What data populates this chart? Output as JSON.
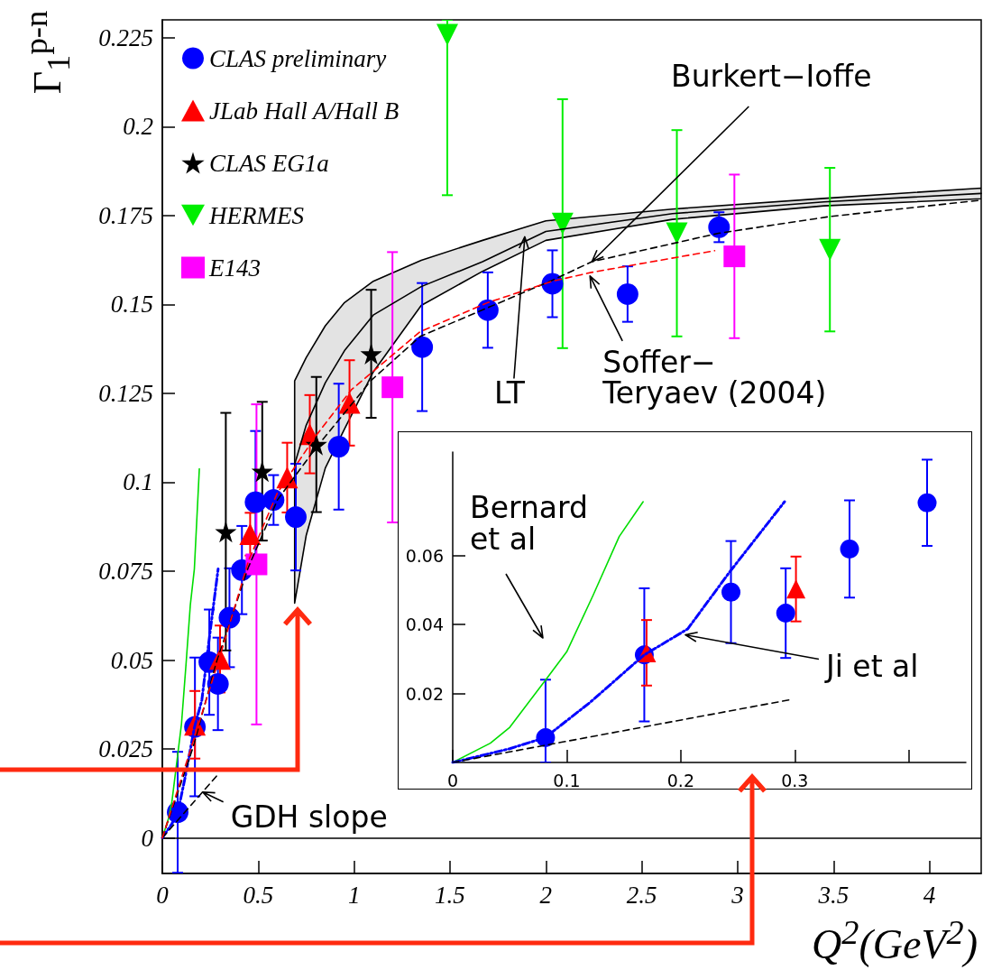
{
  "chart_data": [
    {
      "type": "scatter",
      "xlabel": "Q$^{2}$(GeV$^{2}$)",
      "ylabel": "Γ$_{1}$$^{p-n}$",
      "xlim": [
        0,
        4.27
      ],
      "xticks": [
        0,
        0.5,
        1,
        1.5,
        2,
        2.5,
        3,
        3.5,
        4
      ],
      "ylim": [
        -0.01,
        0.23
      ],
      "yticks": [
        0,
        0.025,
        0.05,
        0.075,
        0.1,
        0.125,
        0.15,
        0.175,
        0.2,
        0.225
      ],
      "grid": false,
      "legend": "top left",
      "ref_lines": [
        {
          "axis": "y",
          "value": 0,
          "color": "#000000"
        }
      ],
      "annotations": [
        {
          "text": "Burkert−Ioffe",
          "x": 2.24,
          "y": 0.162
        },
        {
          "text": "Soffer−\nTeryaev (2004)",
          "x": 2.23,
          "y": 0.158
        },
        {
          "text": "LT",
          "x": 1.89,
          "y": 0.169
        },
        {
          "text": "GDH slope",
          "x": 0.21,
          "y": 0.0129
        }
      ],
      "series": [
        {
          "type": "line",
          "color": "#000000",
          "marker": "none",
          "line_style": "solid",
          "x": [
            0.69,
            0.75,
            0.85,
            0.95,
            1.1,
            1.35,
            1.67,
            2.0,
            2.66,
            3.45,
            4.27
          ],
          "values": [
            0.105,
            0.116,
            0.128,
            0.137,
            0.147,
            0.155,
            0.162,
            0.1705,
            0.1755,
            0.1788,
            0.1812
          ],
          "lower": [
            0.066,
            0.085,
            0.104,
            0.115,
            0.131,
            0.1497,
            0.1593,
            0.168,
            0.1739,
            0.1777,
            0.1797
          ],
          "upper": [
            0.1285,
            0.135,
            0.144,
            0.1505,
            0.1565,
            0.1624,
            0.168,
            0.1735,
            0.1768,
            0.1798,
            0.1827
          ]
        },
        {
          "type": "line",
          "color": "#00dd00",
          "marker": "none",
          "line_style": "solid",
          "x": [
            0,
            0.033,
            0.05,
            0.083,
            0.1,
            0.123,
            0.146,
            0.167,
            0.193
          ],
          "values": [
            0,
            0.0056,
            0.0102,
            0.0246,
            0.0321,
            0.0484,
            0.0655,
            0.0756,
            0.1038
          ]
        },
        {
          "type": "line",
          "color": "#0000ff",
          "marker": "none",
          "line_style": "dotted",
          "x": [
            0,
            0.05,
            0.081,
            0.12,
            0.168,
            0.206,
            0.243,
            0.291
          ],
          "values": [
            0,
            0.004,
            0.0072,
            0.0173,
            0.0312,
            0.0387,
            0.0553,
            0.0756
          ]
        },
        {
          "type": "line",
          "color": "#000000",
          "marker": "none",
          "line_style": "dashed",
          "x": [
            0,
            0.296
          ],
          "values": [
            0,
            0.0182
          ]
        },
        {
          "type": "line",
          "color": "#000000",
          "marker": "none",
          "line_style": "dashed",
          "x": [
            0,
            0.16,
            0.28,
            0.448,
            0.6,
            0.8,
            1.09,
            1.345,
            2.03,
            2.24,
            2.9,
            3.48,
            4.27
          ],
          "values": [
            0,
            0.0254,
            0.049,
            0.076,
            0.095,
            0.1096,
            0.1287,
            0.141,
            0.1567,
            0.162,
            0.17,
            0.1747,
            0.1793
          ]
        },
        {
          "type": "line",
          "color": "#ff0000",
          "marker": "none",
          "line_style": "dashed",
          "x": [
            0,
            0.16,
            0.3,
            0.45,
            0.6,
            0.8,
            0.986,
            1.344,
            1.697,
            2.034,
            2.238,
            2.88
          ],
          "values": [
            0,
            0.027,
            0.051,
            0.078,
            0.097,
            0.113,
            0.126,
            0.1423,
            0.1505,
            0.1565,
            0.159,
            0.1651
          ]
        },
        {
          "name": "CLAS preliminary",
          "type": "scatter",
          "color": "#0000ff",
          "marker": "circle",
          "x": [
            0.08,
            0.17,
            0.245,
            0.29,
            0.35,
            0.415,
            0.486,
            0.58,
            0.696,
            0.92,
            1.355,
            1.697,
            2.034,
            2.426,
            2.903
          ],
          "values": [
            0.0072,
            0.0312,
            0.0494,
            0.0433,
            0.0619,
            0.0753,
            0.0944,
            0.095,
            0.0902,
            0.11,
            0.138,
            0.1484,
            0.1558,
            0.1529,
            0.1717
          ],
          "errors": [
            0.017,
            0.0195,
            0.0148,
            0.013,
            0.0139,
            0.0124,
            0.02,
            0.007,
            0.015,
            0.0177,
            0.018,
            0.0106,
            0.0094,
            0.0078,
            0.0042
          ]
        },
        {
          "name": "JLab Hall A/Hall B",
          "type": "scatter",
          "color": "#ff0000",
          "marker": "triangle",
          "x": [
            0.17,
            0.301,
            0.458,
            0.651,
            0.769,
            0.976
          ],
          "values": [
            0.0318,
            0.0503,
            0.0854,
            0.1013,
            0.1135,
            0.1223
          ],
          "errors": [
            0.0095,
            0.0094,
            0.006,
            0.0098,
            0.011,
            0.012
          ]
        },
        {
          "name": "CLAS EG1a",
          "type": "scatter",
          "color": "#000000",
          "marker": "star",
          "x": [
            0.331,
            0.521,
            0.803,
            1.089
          ],
          "values": [
            0.0861,
            0.1031,
            0.1106,
            0.1361
          ],
          "errors": [
            0.0334,
            0.0195,
            0.019,
            0.018
          ]
        },
        {
          "name": "HERMES",
          "type": "scatter",
          "color": "#00ee00",
          "marker": "triangle-down",
          "x": [
            1.486,
            2.087,
            2.683,
            3.481
          ],
          "values": [
            0.2258,
            0.1727,
            0.17,
            0.1654
          ],
          "errors": [
            [
              0.1807,
              0.23
            ],
            0.035,
            0.029,
            0.023
          ]
        },
        {
          "name": "E143",
          "type": "scatter",
          "color": "#ff00ff",
          "marker": "square",
          "x": [
            0.491,
            1.2,
            2.983
          ],
          "values": [
            0.0769,
            0.1267,
            0.1635
          ],
          "errors": [
            0.045,
            0.038,
            0.023
          ]
        }
      ]
    },
    {
      "type": "scatter",
      "xlim": [
        0,
        0.45
      ],
      "xticks": [
        0,
        0.1,
        0.2,
        0.3,
        {
          "value": 0.4,
          "label": null
        }
      ],
      "ylim": [
        0,
        0.09
      ],
      "yticks": [
        0.02,
        0.04,
        0.06
      ],
      "grid": false,
      "annotations": [
        "Bernard\net al",
        {
          "text": "Ji et al",
          "x": 0.204,
          "y": 0.037
        }
      ],
      "series": [
        {
          "type": "line",
          "color": "#00dd00",
          "marker": "none",
          "line_style": "solid",
          "x": [
            0,
            0.033,
            0.05,
            0.083,
            0.1,
            0.123,
            0.146,
            0.167
          ],
          "values": [
            0,
            0.0056,
            0.0102,
            0.0246,
            0.0321,
            0.0484,
            0.0655,
            0.0756
          ]
        },
        {
          "type": "line",
          "color": "#0000ff",
          "marker": "none",
          "line_style": "dotted",
          "x": [
            0,
            0.05,
            0.081,
            0.12,
            0.168,
            0.206,
            0.243,
            0.291
          ],
          "values": [
            0,
            0.004,
            0.0072,
            0.0173,
            0.0312,
            0.0387,
            0.0553,
            0.0756
          ]
        },
        {
          "type": "line",
          "color": "#000000",
          "marker": "none",
          "line_style": "dashed",
          "x": [
            0,
            0.296
          ],
          "values": [
            0,
            0.0182
          ]
        },
        {
          "type": "scatter",
          "color": "#0000ff",
          "marker": "circle",
          "x": [
            0.0814,
            0.168,
            0.244,
            0.292,
            0.348,
            0.416
          ],
          "values": [
            0.0072,
            0.0312,
            0.0494,
            0.0433,
            0.0619,
            0.0753
          ],
          "errors": [
            [
              0,
              0.024
            ],
            0.0193,
            0.0148,
            0.013,
            0.0141,
            0.0125
          ]
        },
        {
          "type": "scatter",
          "color": "#ff0000",
          "marker": "triangle",
          "x": [
            0.17,
            0.301
          ],
          "values": [
            0.0318,
            0.0503
          ],
          "errors": [
            0.0095,
            0.0094
          ]
        }
      ]
    }
  ]
}
